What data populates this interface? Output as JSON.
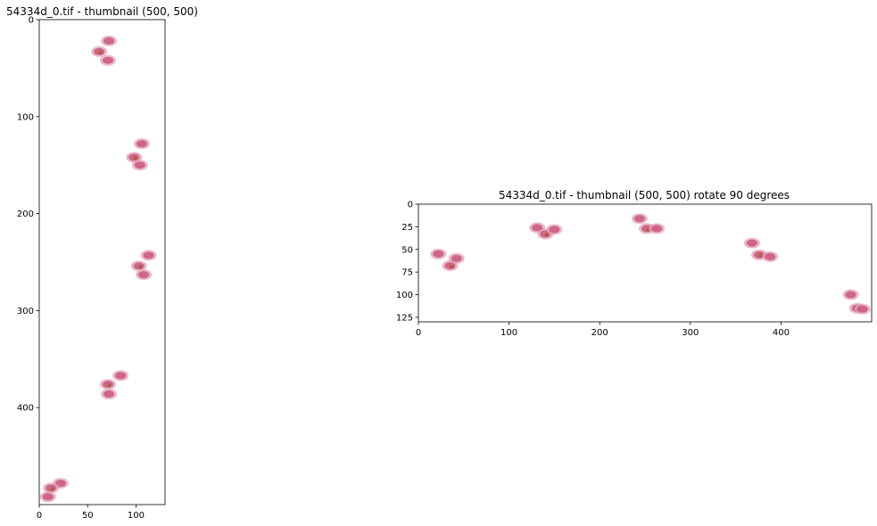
{
  "chart_data": [
    {
      "type": "image",
      "title": "54334d_0.tif - thumbnail (500, 500)",
      "xlim": [
        0,
        130
      ],
      "ylim": [
        500,
        0
      ],
      "xticks": [
        0,
        50,
        100
      ],
      "yticks": [
        0,
        100,
        200,
        300,
        400
      ],
      "xtick_labels": [
        "0",
        "50",
        "100"
      ],
      "ytick_labels": [
        "0",
        "100",
        "200",
        "300",
        "400"
      ],
      "tissue_regions": [
        {
          "x": 72,
          "y": 22
        },
        {
          "x": 62,
          "y": 33
        },
        {
          "x": 71,
          "y": 42
        },
        {
          "x": 106,
          "y": 128
        },
        {
          "x": 98,
          "y": 142
        },
        {
          "x": 104,
          "y": 150
        },
        {
          "x": 113,
          "y": 243
        },
        {
          "x": 103,
          "y": 254
        },
        {
          "x": 108,
          "y": 263
        },
        {
          "x": 84,
          "y": 367
        },
        {
          "x": 71,
          "y": 376
        },
        {
          "x": 72,
          "y": 386
        },
        {
          "x": 22,
          "y": 478
        },
        {
          "x": 12,
          "y": 483
        },
        {
          "x": 9,
          "y": 492
        }
      ]
    },
    {
      "type": "image",
      "title": "54334d_0.tif - thumbnail (500, 500) rotate 90 degrees",
      "xlim": [
        0,
        500
      ],
      "ylim": [
        130,
        0
      ],
      "xticks": [
        0,
        100,
        200,
        300,
        400
      ],
      "yticks": [
        0,
        25,
        50,
        75,
        100,
        125
      ],
      "xtick_labels": [
        "0",
        "100",
        "200",
        "300",
        "400"
      ],
      "ytick_labels": [
        "0",
        "25",
        "50",
        "75",
        "100",
        "125"
      ],
      "tissue_regions": [
        {
          "x": 22,
          "y": 55
        },
        {
          "x": 35,
          "y": 68
        },
        {
          "x": 42,
          "y": 60
        },
        {
          "x": 131,
          "y": 26
        },
        {
          "x": 140,
          "y": 33
        },
        {
          "x": 150,
          "y": 28
        },
        {
          "x": 244,
          "y": 16
        },
        {
          "x": 252,
          "y": 27
        },
        {
          "x": 263,
          "y": 27
        },
        {
          "x": 368,
          "y": 43
        },
        {
          "x": 376,
          "y": 56
        },
        {
          "x": 388,
          "y": 58
        },
        {
          "x": 477,
          "y": 100
        },
        {
          "x": 484,
          "y": 115
        },
        {
          "x": 490,
          "y": 116
        }
      ]
    }
  ],
  "colors": {
    "tissue_main": "#c9577c",
    "tissue_light": "#e2a1b5",
    "tissue_dark": "#a85a3a",
    "axis": "#000000"
  }
}
